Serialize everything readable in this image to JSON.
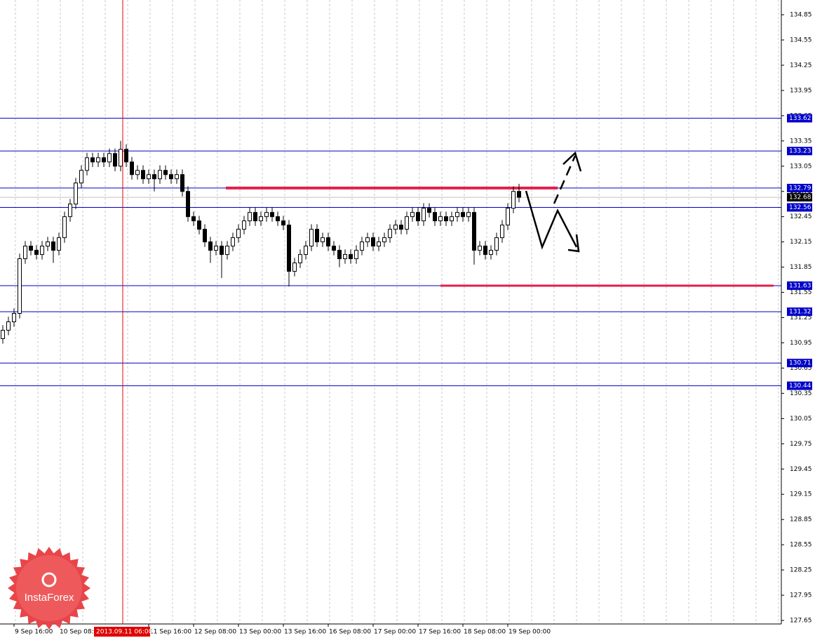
{
  "chart_data": {
    "type": "candlestick",
    "ylim": [
      127.65,
      134.85
    ],
    "yticks": [
      134.85,
      134.55,
      134.25,
      133.95,
      133.65,
      133.35,
      133.05,
      132.75,
      132.45,
      132.15,
      131.85,
      131.55,
      131.25,
      130.95,
      130.65,
      130.35,
      130.05,
      129.75,
      129.45,
      129.15,
      128.85,
      128.55,
      128.25,
      127.95,
      127.65
    ],
    "grid": true,
    "categories": [
      null,
      null,
      "9 Sep 16:00",
      null,
      null,
      null,
      null,
      null,
      null,
      null,
      "10 Sep 08:00",
      null,
      null,
      null,
      null,
      null,
      null,
      null,
      null,
      null,
      null,
      null,
      null,
      null,
      null,
      null,
      "11 Sep 16:00",
      null,
      null,
      null,
      null,
      null,
      null,
      null,
      "12 Sep 08:00",
      null,
      null,
      null,
      null,
      null,
      null,
      null,
      "13 Sep 00:00",
      null,
      null,
      null,
      null,
      null,
      null,
      null,
      "13 Sep 16:00",
      null,
      null,
      null,
      null,
      null,
      null,
      null,
      "16 Sep 08:00",
      null,
      null,
      null,
      null,
      null,
      null,
      null,
      "17 Sep 00:00",
      null,
      null,
      null,
      null,
      null,
      null,
      null,
      "17 Sep 16:00",
      null,
      null,
      null,
      null,
      null,
      null,
      null,
      "18 Sep 08:00",
      null,
      null,
      null,
      null,
      null,
      null,
      null,
      "19 Sep 00:00",
      null,
      null
    ],
    "open": [
      131.0,
      131.1,
      131.2,
      131.3,
      131.95,
      132.1,
      132.05,
      132.0,
      132.1,
      132.15,
      132.05,
      132.2,
      132.45,
      132.6,
      132.85,
      133.0,
      133.15,
      133.1,
      133.15,
      133.1,
      133.2,
      133.05,
      133.25,
      133.1,
      132.95,
      133.0,
      132.9,
      132.95,
      132.9,
      133.0,
      132.95,
      132.9,
      132.95,
      132.75,
      132.45,
      132.4,
      132.3,
      132.15,
      132.05,
      132.1,
      132.0,
      132.1,
      132.2,
      132.3,
      132.4,
      132.5,
      132.4,
      132.45,
      132.5,
      132.45,
      132.4,
      132.35,
      131.8,
      131.9,
      132.0,
      132.1,
      132.3,
      132.15,
      132.2,
      132.1,
      132.05,
      131.95,
      132.0,
      131.95,
      132.05,
      132.15,
      132.2,
      132.1,
      132.15,
      132.2,
      132.3,
      132.35,
      132.3,
      132.45,
      132.5,
      132.4,
      132.55,
      132.5,
      132.4,
      132.45,
      132.4,
      132.45,
      132.5,
      132.45,
      132.5,
      132.05,
      132.1,
      132.0,
      132.05,
      132.2,
      132.35,
      132.55,
      132.75
    ],
    "high": [
      131.16,
      131.26,
      131.36,
      132.01,
      132.16,
      132.16,
      132.11,
      132.16,
      132.21,
      132.21,
      132.26,
      132.51,
      132.66,
      132.91,
      133.06,
      133.21,
      133.21,
      133.21,
      133.21,
      133.26,
      133.26,
      133.35,
      133.31,
      133.16,
      133.06,
      133.06,
      133.01,
      133.01,
      133.06,
      133.06,
      133.01,
      133.01,
      133.01,
      132.81,
      132.51,
      132.46,
      132.36,
      132.21,
      132.16,
      132.16,
      132.16,
      132.26,
      132.36,
      132.46,
      132.56,
      132.56,
      132.51,
      132.56,
      132.56,
      132.51,
      132.46,
      132.41,
      131.96,
      132.06,
      132.16,
      132.36,
      132.36,
      132.26,
      132.26,
      132.16,
      132.11,
      132.06,
      132.06,
      132.11,
      132.21,
      132.26,
      132.26,
      132.21,
      132.26,
      132.36,
      132.41,
      132.41,
      132.51,
      132.56,
      132.56,
      132.61,
      132.61,
      132.56,
      132.51,
      132.51,
      132.51,
      132.56,
      132.56,
      132.56,
      132.56,
      132.16,
      132.16,
      132.11,
      132.26,
      132.41,
      132.61,
      132.81,
      132.84
    ],
    "low": [
      130.94,
      131.04,
      131.14,
      131.24,
      131.89,
      131.99,
      131.94,
      131.94,
      132.04,
      131.9,
      131.99,
      132.14,
      132.39,
      132.54,
      132.79,
      132.94,
      133.04,
      133.04,
      133.04,
      133.04,
      132.99,
      132.99,
      133.04,
      132.89,
      132.89,
      132.84,
      132.84,
      132.75,
      132.84,
      132.89,
      132.84,
      132.84,
      132.69,
      132.39,
      132.34,
      132.24,
      132.09,
      131.9,
      131.99,
      131.72,
      131.94,
      132.04,
      132.14,
      132.24,
      132.34,
      132.34,
      132.34,
      132.39,
      132.39,
      132.34,
      132.29,
      131.62,
      131.74,
      131.84,
      131.94,
      132.04,
      132.09,
      132.09,
      132.04,
      131.99,
      131.85,
      131.89,
      131.89,
      131.89,
      131.99,
      132.09,
      132.04,
      132.04,
      132.09,
      132.14,
      132.24,
      132.24,
      132.24,
      132.39,
      132.34,
      132.34,
      132.44,
      132.34,
      132.34,
      132.34,
      132.34,
      132.39,
      132.39,
      132.39,
      131.88,
      131.99,
      131.94,
      131.94,
      131.99,
      132.14,
      132.29,
      132.49,
      132.62
    ],
    "close": [
      131.1,
      131.2,
      131.3,
      131.95,
      132.1,
      132.05,
      132.0,
      132.1,
      132.15,
      132.05,
      132.2,
      132.45,
      132.6,
      132.85,
      133.0,
      133.15,
      133.1,
      133.15,
      133.1,
      133.2,
      133.05,
      133.25,
      133.1,
      132.95,
      133.0,
      132.9,
      132.95,
      132.9,
      133.0,
      132.95,
      132.9,
      132.95,
      132.75,
      132.45,
      132.4,
      132.3,
      132.15,
      132.05,
      132.1,
      132.0,
      132.1,
      132.2,
      132.3,
      132.4,
      132.5,
      132.4,
      132.45,
      132.5,
      132.45,
      132.4,
      132.35,
      131.8,
      131.9,
      132.0,
      132.1,
      132.3,
      132.15,
      132.2,
      132.1,
      132.05,
      131.95,
      132.0,
      131.95,
      132.05,
      132.15,
      132.2,
      132.1,
      132.15,
      132.2,
      132.3,
      132.35,
      132.3,
      132.45,
      132.5,
      132.4,
      132.55,
      132.5,
      132.4,
      132.45,
      132.4,
      132.45,
      132.5,
      132.45,
      132.5,
      132.05,
      132.1,
      132.0,
      132.05,
      132.2,
      132.35,
      132.55,
      132.75,
      132.68
    ],
    "levels": [
      133.62,
      133.23,
      132.79,
      132.56,
      131.63,
      131.32,
      130.71,
      130.44
    ],
    "level_color": "#0000c8",
    "price": 132.68,
    "resistance": 132.79,
    "support": 131.63,
    "zone_color": "#e0204a",
    "cursor_label": "2013.09.11 06:00",
    "logo": "InstaForex"
  }
}
